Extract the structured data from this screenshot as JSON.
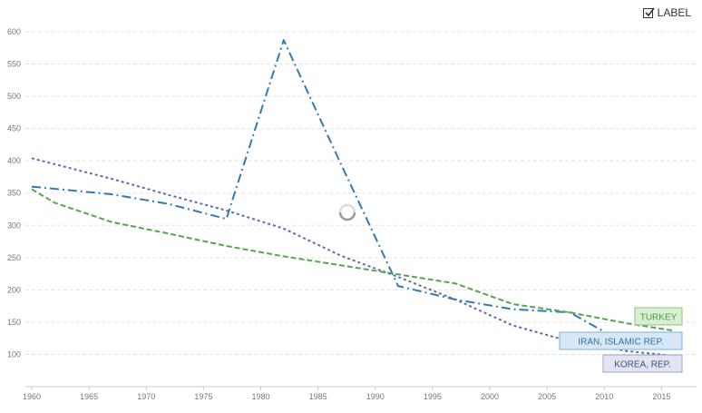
{
  "controls": {
    "label_toggle": "LABEL",
    "label_checked": true
  },
  "chart_data": {
    "type": "line",
    "title": "",
    "xlabel": "",
    "ylabel": "",
    "xlim": [
      1960,
      2016
    ],
    "ylim": [
      50,
      600
    ],
    "x_ticks": [
      1960,
      1965,
      1970,
      1975,
      1980,
      1985,
      1990,
      1995,
      2000,
      2005,
      2010,
      2015
    ],
    "y_ticks": [
      100,
      150,
      200,
      250,
      300,
      350,
      400,
      450,
      500,
      550,
      600
    ],
    "grid": "horizontal dashed",
    "series": [
      {
        "name": "IRAN, ISLAMIC REP.",
        "color": "#2f7bb5",
        "dash": "dash-dot",
        "points": [
          [
            1960,
            360
          ],
          [
            1967,
            348
          ],
          [
            1972,
            333
          ],
          [
            1977,
            310
          ],
          [
            1982,
            587
          ],
          [
            1987,
            395
          ],
          [
            1992,
            206
          ],
          [
            1997,
            185
          ],
          [
            2002,
            170
          ],
          [
            2007,
            165
          ],
          [
            2012,
            115
          ],
          [
            2016,
            110
          ]
        ]
      },
      {
        "name": "KOREA, REP.",
        "color": "#5b6ea8",
        "dash": "dotted",
        "points": [
          [
            1960,
            404
          ],
          [
            1967,
            372
          ],
          [
            1972,
            347
          ],
          [
            1977,
            323
          ],
          [
            1982,
            295
          ],
          [
            1987,
            253
          ],
          [
            1992,
            220
          ],
          [
            1997,
            185
          ],
          [
            2002,
            145
          ],
          [
            2007,
            120
          ],
          [
            2012,
            105
          ],
          [
            2016,
            98
          ]
        ]
      },
      {
        "name": "TURKEY",
        "color": "#5aa350",
        "dash": "dashed",
        "points": [
          [
            1960,
            356
          ],
          [
            1962,
            335
          ],
          [
            1967,
            305
          ],
          [
            1972,
            287
          ],
          [
            1977,
            268
          ],
          [
            1982,
            252
          ],
          [
            1987,
            238
          ],
          [
            1992,
            224
          ],
          [
            1997,
            210
          ],
          [
            2002,
            178
          ],
          [
            2007,
            165
          ],
          [
            2012,
            148
          ],
          [
            2016,
            137
          ]
        ]
      }
    ]
  }
}
